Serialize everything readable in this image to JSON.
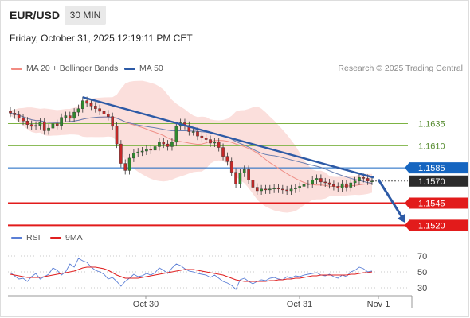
{
  "header": {
    "symbol": "EUR/USD",
    "timeframe": "30 MIN",
    "datetime": "Friday, October 31, 2025 12:19:11 PM CET"
  },
  "legend": {
    "ma20_label": "MA 20 + Bollinger Bands",
    "ma20_color": "#f28b82",
    "ma50_label": "MA 50",
    "ma50_color": "#2d5aa6",
    "credit": "Research © 2025 Trading Central"
  },
  "rsi_legend": {
    "rsi_label": "RSI",
    "rsi_color": "#5b7fd6",
    "ma9_label": "9MA",
    "ma9_color": "#e02020"
  },
  "chart_data": [
    {
      "type": "candlestick",
      "title": "EUR/USD 30 MIN",
      "x_ticks": [
        "Oct 30",
        "Oct 31",
        "Nov 1"
      ],
      "ylim": [
        1.1514,
        1.1685
      ],
      "levels": [
        {
          "value": 1.1635,
          "label": "1.1635",
          "kind": "resistance",
          "color": "#7cb342"
        },
        {
          "value": 1.161,
          "label": "1.1610",
          "kind": "resistance",
          "color": "#7cb342"
        },
        {
          "value": 1.1585,
          "label": "1.1585",
          "kind": "pivot",
          "color": "#1565c0"
        },
        {
          "value": 1.157,
          "label": "1.1570",
          "kind": "last_price",
          "color": "#222222"
        },
        {
          "value": 1.1545,
          "label": "1.1545",
          "kind": "support",
          "color": "#e21b1b"
        },
        {
          "value": 1.152,
          "label": "1.1520",
          "kind": "support",
          "color": "#e21b1b"
        }
      ],
      "trendline_color": "#2d5aa6",
      "close_series": [
        1.1647,
        1.1645,
        1.1641,
        1.1638,
        1.1634,
        1.1632,
        1.1633,
        1.1637,
        1.1627,
        1.163,
        1.1635,
        1.1633,
        1.1642,
        1.1644,
        1.1641,
        1.1648,
        1.1652,
        1.1661,
        1.1658,
        1.1655,
        1.1652,
        1.1649,
        1.1646,
        1.1643,
        1.1632,
        1.1612,
        1.159,
        1.1582,
        1.1596,
        1.1602,
        1.1603,
        1.1604,
        1.1606,
        1.1605,
        1.1609,
        1.1614,
        1.1612,
        1.1609,
        1.1614,
        1.1632,
        1.1636,
        1.1633,
        1.1626,
        1.1626,
        1.1621,
        1.1619,
        1.1617,
        1.1613,
        1.1614,
        1.1608,
        1.1598,
        1.1592,
        1.158,
        1.1567,
        1.1579,
        1.1583,
        1.1571,
        1.1563,
        1.1559,
        1.1561,
        1.156,
        1.1561,
        1.1562,
        1.1561,
        1.156,
        1.1559,
        1.1561,
        1.1562,
        1.1564,
        1.1566,
        1.1567,
        1.1571,
        1.1573,
        1.1569,
        1.1568,
        1.1566,
        1.1564,
        1.1562,
        1.1567,
        1.1563,
        1.1568,
        1.157,
        1.1574,
        1.1573,
        1.157,
        1.157
      ],
      "forecast": {
        "from": 1.157,
        "to": 1.152
      }
    },
    {
      "type": "line",
      "title": "RSI",
      "y_ticks": [
        70,
        50,
        30
      ],
      "ylim": [
        20,
        80
      ],
      "series": [
        {
          "name": "RSI",
          "color": "#5b7fd6",
          "values": [
            49,
            45,
            41,
            42,
            38,
            44,
            48,
            41,
            44,
            47,
            55,
            52,
            46,
            50,
            60,
            56,
            67,
            64,
            62,
            56,
            52,
            50,
            47,
            41,
            43,
            38,
            32,
            38,
            42,
            47,
            44,
            45,
            48,
            46,
            49,
            55,
            52,
            48,
            55,
            60,
            58,
            54,
            51,
            50,
            48,
            47,
            46,
            43,
            46,
            42,
            38,
            36,
            33,
            28,
            40,
            42,
            38,
            35,
            38,
            40,
            39,
            42,
            43,
            41,
            40,
            44,
            42,
            45,
            44,
            46,
            47,
            48,
            49,
            46,
            45,
            47,
            44,
            42,
            46,
            44,
            50,
            52,
            56,
            54,
            50,
            51
          ]
        },
        {
          "name": "9MA",
          "color": "#e02020",
          "values": [
            47,
            46,
            45,
            44,
            43,
            43,
            43,
            43,
            44,
            45,
            46,
            47,
            48,
            49,
            50,
            51,
            53,
            55,
            56,
            56,
            56,
            55,
            54,
            52,
            49,
            46,
            44,
            42,
            42,
            42,
            42,
            43,
            44,
            45,
            46,
            47,
            48,
            49,
            50,
            51,
            52,
            53,
            53,
            53,
            52,
            51,
            50,
            49,
            48,
            47,
            46,
            44,
            42,
            40,
            39,
            38,
            38,
            38,
            38,
            38,
            38,
            39,
            39,
            40,
            40,
            41,
            41,
            42,
            42,
            43,
            44,
            45,
            45,
            46,
            46,
            46,
            46,
            46,
            46,
            46,
            47,
            47,
            48,
            49,
            49,
            50
          ]
        }
      ]
    }
  ]
}
